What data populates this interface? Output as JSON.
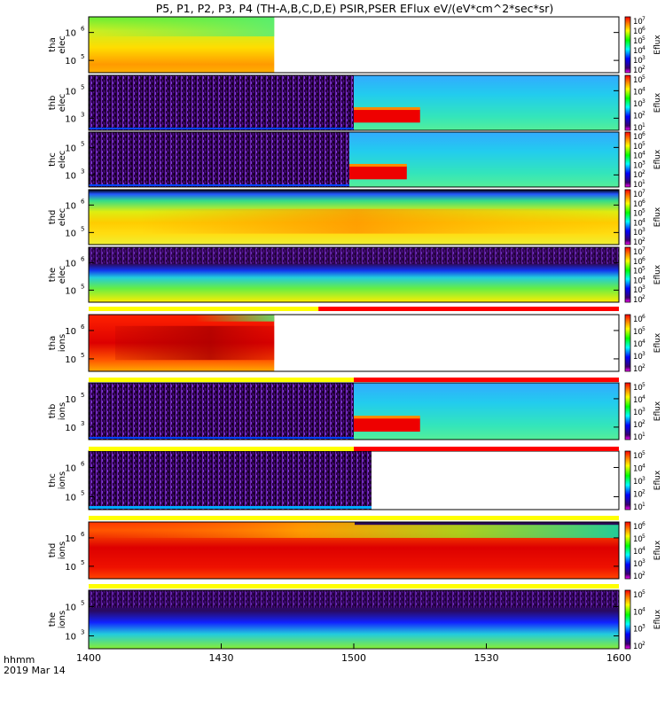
{
  "title": "P5, P1, P2, P3, P4 (TH-A,B,C,D,E) PSIR,PSER EFlux eV/(eV*cm^2*sec*sr)",
  "time_axis": {
    "row_label": "hhmm",
    "date_label": "2019 Mar 14",
    "ticks": [
      "1400",
      "1430",
      "1500",
      "1530",
      "1600"
    ]
  },
  "colorbar_label": "Eflux",
  "chart_data": [
    {
      "type": "heatmap",
      "panel": "tha-elec",
      "ylabel": [
        "tha",
        "elec"
      ],
      "y_ticks": [
        {
          "mantissa": "10",
          "exp": "6"
        },
        {
          "mantissa": "10",
          "exp": "5"
        }
      ],
      "colorbar_ticks": [
        "10^7",
        "10^6",
        "10^5",
        "10^4",
        "10^3",
        "10^2"
      ],
      "data_end_time": "1442",
      "regions": [
        {
          "t0": "1400",
          "t1": "1442",
          "description": "upper rows yellow-green to green, lower rows yellow to orange"
        }
      ]
    },
    {
      "type": "heatmap",
      "panel": "thb-elec",
      "ylabel": [
        "thb",
        "elec"
      ],
      "y_ticks": [
        {
          "mantissa": "10",
          "exp": "5"
        },
        {
          "mantissa": "10",
          "exp": "3"
        }
      ],
      "colorbar_ticks": [
        "10^5",
        "10^4",
        "10^3",
        "10^2",
        "10^1"
      ],
      "regions": [
        {
          "t0": "1400",
          "t1": "1500",
          "description": "noise, dark purple"
        },
        {
          "t0": "1500",
          "t1": "1600",
          "description": "cyan-green with red band at low energy 1500-1515"
        }
      ]
    },
    {
      "type": "heatmap",
      "panel": "thc-elec",
      "ylabel": [
        "thc",
        "elec"
      ],
      "y_ticks": [
        {
          "mantissa": "10",
          "exp": "5"
        },
        {
          "mantissa": "10",
          "exp": "3"
        }
      ],
      "colorbar_ticks": [
        "10^6",
        "10^5",
        "10^4",
        "10^3",
        "10^2",
        "10^1"
      ],
      "regions": [
        {
          "t0": "1400",
          "t1": "1459",
          "description": "noise, dark purple"
        },
        {
          "t0": "1459",
          "t1": "1600",
          "description": "cyan-green with red band 1459-1512"
        }
      ]
    },
    {
      "type": "heatmap",
      "panel": "thd-elec",
      "ylabel": [
        "thd",
        "elec"
      ],
      "y_ticks": [
        {
          "mantissa": "10",
          "exp": "6"
        },
        {
          "mantissa": "10",
          "exp": "5"
        }
      ],
      "colorbar_ticks": [
        "10^7",
        "10^6",
        "10^5",
        "10^4",
        "10^3",
        "10^2"
      ],
      "regions": [
        {
          "t0": "1400",
          "t1": "1600",
          "description": "yellow with orange core, green upper rows"
        }
      ]
    },
    {
      "type": "heatmap",
      "panel": "the-elec",
      "ylabel": [
        "the",
        "elec"
      ],
      "y_ticks": [
        {
          "mantissa": "10",
          "exp": "6"
        },
        {
          "mantissa": "10",
          "exp": "5"
        }
      ],
      "colorbar_ticks": [
        "10^7",
        "10^6",
        "10^5",
        "10^4",
        "10^3",
        "10^2"
      ],
      "regions": [
        {
          "t0": "1400",
          "t1": "1600",
          "description": "purple top, blue band, green to yellow bottom"
        }
      ]
    },
    {
      "type": "heatmap",
      "panel": "tha-ions",
      "ylabel": [
        "tha",
        "ions"
      ],
      "y_ticks": [
        {
          "mantissa": "10",
          "exp": "6"
        },
        {
          "mantissa": "10",
          "exp": "5"
        }
      ],
      "colorbar_ticks": [
        "10^6",
        "10^5",
        "10^4",
        "10^3",
        "10^2"
      ],
      "data_end_time": "1442",
      "regions": [
        {
          "t0": "1400",
          "t1": "1442",
          "description": "red to orange with dark red core, green top right"
        }
      ]
    },
    {
      "type": "heatmap",
      "panel": "thb-ions",
      "ylabel": [
        "thb",
        "ions"
      ],
      "y_ticks": [
        {
          "mantissa": "10",
          "exp": "5"
        },
        {
          "mantissa": "10",
          "exp": "3"
        }
      ],
      "colorbar_ticks": [
        "10^5",
        "10^4",
        "10^3",
        "10^2",
        "10^1"
      ],
      "regions": [
        {
          "t0": "1400",
          "t1": "1500",
          "description": "noise, dark purple"
        },
        {
          "t0": "1500",
          "t1": "1600",
          "description": "cyan-green with red band 1500-1515"
        }
      ]
    },
    {
      "type": "heatmap",
      "panel": "thc-ions",
      "ylabel": [
        "thc",
        "ions"
      ],
      "y_ticks": [
        {
          "mantissa": "10",
          "exp": "6"
        },
        {
          "mantissa": "10",
          "exp": "5"
        }
      ],
      "colorbar_ticks": [
        "10^5",
        "10^4",
        "10^3",
        "10^2",
        "10^1"
      ],
      "data_end_time": "1504",
      "regions": [
        {
          "t0": "1400",
          "t1": "1504",
          "description": "noise, dark purple"
        }
      ]
    },
    {
      "type": "heatmap",
      "panel": "thd-ions",
      "ylabel": [
        "thd",
        "ions"
      ],
      "y_ticks": [
        {
          "mantissa": "10",
          "exp": "6"
        },
        {
          "mantissa": "10",
          "exp": "5"
        }
      ],
      "colorbar_ticks": [
        "10^6",
        "10^5",
        "10^4",
        "10^3",
        "10^2"
      ],
      "regions": [
        {
          "t0": "1400",
          "t1": "1600",
          "description": "red with dark red core, yellow-green upper rows"
        }
      ]
    },
    {
      "type": "heatmap",
      "panel": "the-ions",
      "ylabel": [
        "the",
        "ions"
      ],
      "y_ticks": [
        {
          "mantissa": "10",
          "exp": "5"
        },
        {
          "mantissa": "10",
          "exp": "3"
        }
      ],
      "colorbar_ticks": [
        "10^5",
        "10^4",
        "10^3",
        "10^2"
      ],
      "regions": [
        {
          "t0": "1400",
          "t1": "1600",
          "description": "purple top, blue middle, green to yellow bottom"
        }
      ]
    }
  ],
  "status_bars": [
    {
      "after_panel": "the-elec",
      "segments": [
        {
          "t0": "1400",
          "t1": "1452",
          "color": "#ffff00"
        },
        {
          "t0": "1452",
          "t1": "1600",
          "color": "#ff0000"
        }
      ]
    },
    {
      "after_panel": "tha-ions",
      "segments": [
        {
          "t0": "1400",
          "t1": "1500",
          "color": "#ffff00"
        },
        {
          "t0": "1500",
          "t1": "1600",
          "color": "#ff0000"
        }
      ]
    },
    {
      "after_panel": "thb-ions",
      "segments": [
        {
          "t0": "1400",
          "t1": "1500",
          "color": "#ffff00"
        },
        {
          "t0": "1500",
          "t1": "1600",
          "color": "#ff0000"
        }
      ]
    },
    {
      "after_panel": "thc-ions",
      "segments": [
        {
          "t0": "1400",
          "t1": "1600",
          "color": "#ffff00"
        }
      ]
    },
    {
      "after_panel": "thd-ions",
      "segments": [
        {
          "t0": "1400",
          "t1": "1600",
          "color": "#ffff00"
        }
      ]
    }
  ]
}
